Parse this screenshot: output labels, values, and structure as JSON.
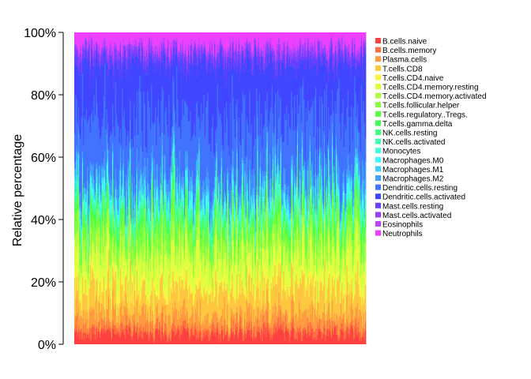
{
  "chart_data": {
    "type": "bar",
    "stacked": true,
    "normalized_percent": true,
    "title": "",
    "xlabel": "",
    "ylabel": "Relative percentage",
    "ylim": [
      0,
      100
    ],
    "y_ticks": [
      "0%",
      "20%",
      "40%",
      "60%",
      "80%",
      "100%"
    ],
    "y_tick_values": [
      0,
      20,
      40,
      60,
      80,
      100
    ],
    "x_tick_labels_shown": false,
    "grid": false,
    "legend_position": "right",
    "sample_count": 300,
    "series": [
      {
        "name": "B.cells.naive",
        "color": "#FF4040",
        "mean_percent": 3.0
      },
      {
        "name": "B.cells.memory",
        "color": "#FF6D40",
        "mean_percent": 2.0
      },
      {
        "name": "Plasma.cells",
        "color": "#FF9A40",
        "mean_percent": 4.0
      },
      {
        "name": "T.cells.CD8",
        "color": "#FFC640",
        "mean_percent": 7.0
      },
      {
        "name": "T.cells.CD4.naive",
        "color": "#FFF240",
        "mean_percent": 2.0
      },
      {
        "name": "T.cells.CD4.memory.resting",
        "color": "#DDFF40",
        "mean_percent": 8.0
      },
      {
        "name": "T.cells.CD4.memory.activated",
        "color": "#B0FF40",
        "mean_percent": 3.0
      },
      {
        "name": "T.cells.follicular.helper",
        "color": "#84FF40",
        "mean_percent": 5.0
      },
      {
        "name": "T.cells.regulatory..Tregs.",
        "color": "#57FF40",
        "mean_percent": 2.5
      },
      {
        "name": "T.cells.gamma.delta",
        "color": "#40FF54",
        "mean_percent": 1.0
      },
      {
        "name": "NK.cells.resting",
        "color": "#40FF81",
        "mean_percent": 2.0
      },
      {
        "name": "NK.cells.activated",
        "color": "#40FFAD",
        "mean_percent": 1.5
      },
      {
        "name": "Monocytes",
        "color": "#40FFDA",
        "mean_percent": 1.5
      },
      {
        "name": "Macrophages.M0",
        "color": "#40F8FF",
        "mean_percent": 2.0
      },
      {
        "name": "Macrophages.M1",
        "color": "#40CCFF",
        "mean_percent": 2.0
      },
      {
        "name": "Macrophages.M2",
        "color": "#409FFF",
        "mean_percent": 4.0
      },
      {
        "name": "Dendritic.cells.resting",
        "color": "#4073FF",
        "mean_percent": 16.0
      },
      {
        "name": "Dendritic.cells.activated",
        "color": "#4046FF",
        "mean_percent": 16.0
      },
      {
        "name": "Mast.cells.resting",
        "color": "#6740FF",
        "mean_percent": 2.5
      },
      {
        "name": "Mast.cells.activated",
        "color": "#9340FF",
        "mean_percent": 2.0
      },
      {
        "name": "Eosinophils",
        "color": "#C040FF",
        "mean_percent": 1.0
      },
      {
        "name": "Neutrophils",
        "color": "#ED40FF",
        "mean_percent": 4.0
      }
    ],
    "legend_swatch_colors": [
      "#FF4040",
      "#FF6D40",
      "#FF9A40",
      "#FFC640",
      "#FFF240",
      "#DDFF40",
      "#B0FF40",
      "#84FF40",
      "#57FF40",
      "#40FF54",
      "#40FF81",
      "#40FFAD",
      "#40FFDA",
      "#40F8FF",
      "#40CCFF",
      "#409FFF",
      "#4073FF",
      "#4046FF",
      "#6740FF",
      "#9340FF",
      "#C040FF",
      "#ED40FF"
    ]
  }
}
